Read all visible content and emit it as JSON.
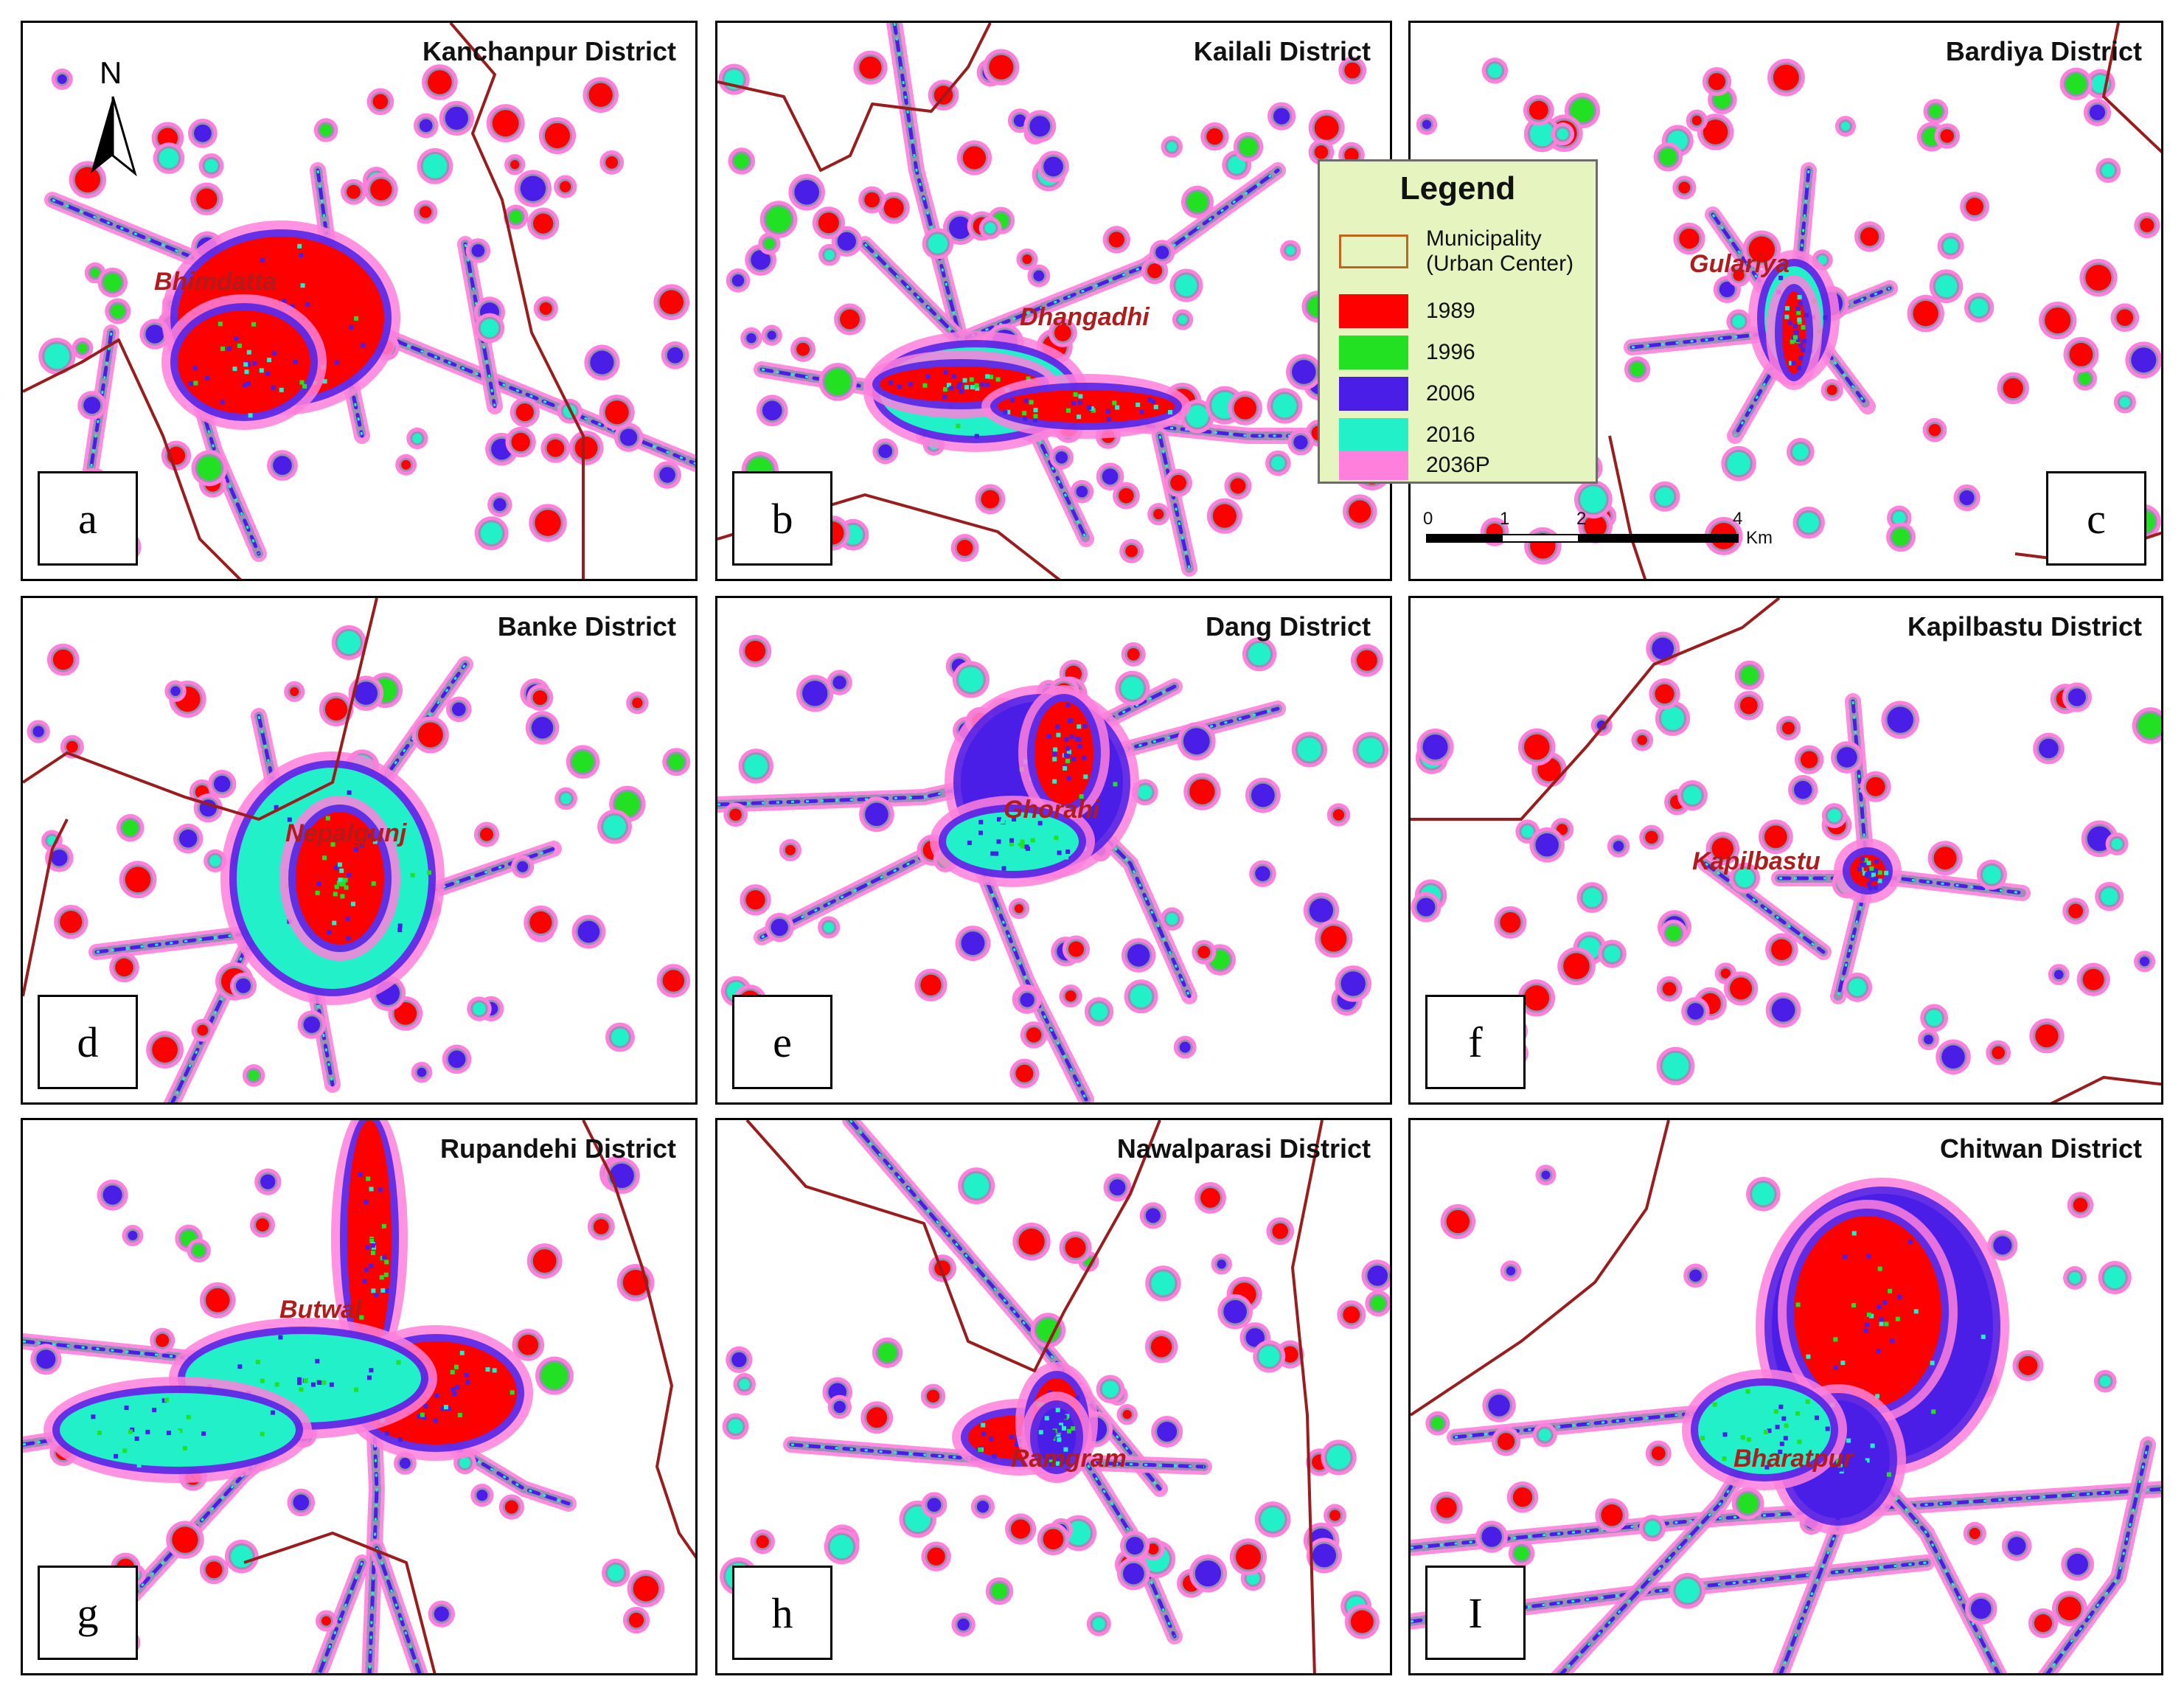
{
  "panels": [
    {
      "id": "a",
      "title": "Kanchanpur District",
      "label": "a",
      "city": "Bhimdatta"
    },
    {
      "id": "b",
      "title": "Kailali District",
      "label": "b",
      "city": "Dhangadhi"
    },
    {
      "id": "c",
      "title": "Bardiya District",
      "label": "c",
      "city": "Gulariya"
    },
    {
      "id": "d",
      "title": "Banke District",
      "label": "d",
      "city": "Nepalgunj"
    },
    {
      "id": "e",
      "title": "Dang District",
      "label": "e",
      "city": "Ghorahi"
    },
    {
      "id": "f",
      "title": "Kapilbastu District",
      "label": "f",
      "city": "Kapilbastu"
    },
    {
      "id": "g",
      "title": "Rupandehi District",
      "label": "g",
      "city": "Butwal"
    },
    {
      "id": "h",
      "title": "Nawalparasi District",
      "label": "h",
      "city": "Ramgram"
    },
    {
      "id": "i",
      "title": "Chitwan District",
      "label": "I",
      "city": "Bharatpur"
    }
  ],
  "legend": {
    "title": "Legend",
    "items": [
      {
        "label": "Municipality\n(Urban Center)",
        "kind": "outline",
        "color": "#c0641e"
      },
      {
        "label": "1989",
        "kind": "fill",
        "color": "#ff0000"
      },
      {
        "label": "1996",
        "kind": "fill",
        "color": "#22e022"
      },
      {
        "label": "2006",
        "kind": "fill",
        "color": "#4a1ee6"
      },
      {
        "label": "2016",
        "kind": "fill",
        "color": "#22f0c8"
      },
      {
        "label": "2036P",
        "kind": "fill",
        "color": "#ff80dc"
      }
    ]
  },
  "scale_bar": {
    "ticks": [
      "0",
      "1",
      "2",
      "4"
    ],
    "unit": "Km"
  },
  "north_arrow": {
    "label": "N"
  },
  "colors": {
    "y1989": "#ff0000",
    "y1996": "#22e022",
    "y2006": "#4a1ee6",
    "y2016": "#22f0c8",
    "y2036": "#ff80dc",
    "boundary": "#9a1c1c",
    "road_gray": "#9c8fb6"
  }
}
